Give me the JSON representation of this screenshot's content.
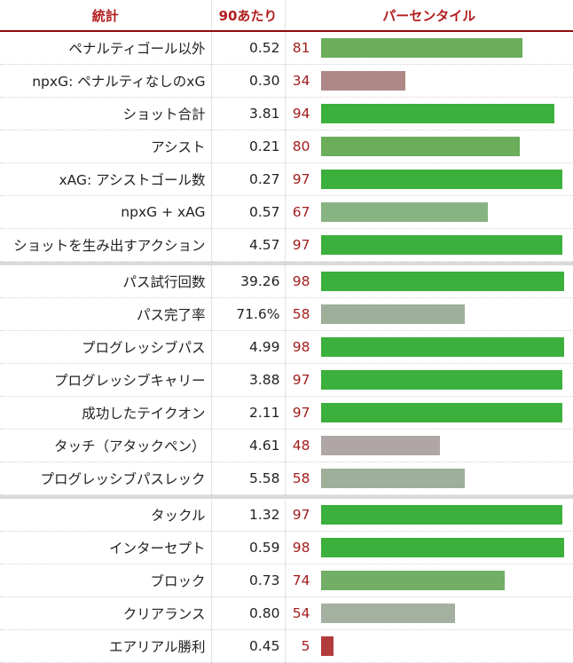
{
  "header": {
    "stat_label": "統計",
    "per90_label": "90あたり",
    "percentile_label": "パーセンタイル"
  },
  "groups": [
    {
      "rows": [
        {
          "stat": "ペナルティゴール以外",
          "per90": "0.52",
          "percentile": 81,
          "color": "#6aad5b"
        },
        {
          "stat": "npxG: ペナルティなしのxG",
          "per90": "0.30",
          "percentile": 34,
          "color": "#ae8886"
        },
        {
          "stat": "ショット合計",
          "per90": "3.81",
          "percentile": 94,
          "color": "#3cb03c"
        },
        {
          "stat": "アシスト",
          "per90": "0.21",
          "percentile": 80,
          "color": "#6aad5b"
        },
        {
          "stat": "xAG: アシストゴール数",
          "per90": "0.27",
          "percentile": 97,
          "color": "#3cb03c"
        },
        {
          "stat": "npxG + xAG",
          "per90": "0.57",
          "percentile": 67,
          "color": "#88b484"
        },
        {
          "stat": "ショットを生み出すアクション",
          "per90": "4.57",
          "percentile": 97,
          "color": "#3cb03c"
        }
      ]
    },
    {
      "rows": [
        {
          "stat": "パス試行回数",
          "per90": "39.26",
          "percentile": 98,
          "color": "#3cb03c"
        },
        {
          "stat": "パス完了率",
          "per90": "71.6%",
          "percentile": 58,
          "color": "#9eaf9a"
        },
        {
          "stat": "プログレッシブパス",
          "per90": "4.99",
          "percentile": 98,
          "color": "#3cb03c"
        },
        {
          "stat": "プログレッシブキャリー",
          "per90": "3.88",
          "percentile": 97,
          "color": "#3cb03c"
        },
        {
          "stat": "成功したテイクオン",
          "per90": "2.11",
          "percentile": 97,
          "color": "#3cb03c"
        },
        {
          "stat": "タッチ（アタックペン）",
          "per90": "4.61",
          "percentile": 48,
          "color": "#b0a6a6"
        },
        {
          "stat": "プログレッシブパスレック",
          "per90": "5.58",
          "percentile": 58,
          "color": "#9eaf9a"
        }
      ]
    },
    {
      "rows": [
        {
          "stat": "タックル",
          "per90": "1.32",
          "percentile": 97,
          "color": "#3cb03c"
        },
        {
          "stat": "インターセプト",
          "per90": "0.59",
          "percentile": 98,
          "color": "#3cb03c"
        },
        {
          "stat": "ブロック",
          "per90": "0.73",
          "percentile": 74,
          "color": "#72ae66"
        },
        {
          "stat": "クリアランス",
          "per90": "0.80",
          "percentile": 54,
          "color": "#a4b0a0"
        },
        {
          "stat": "エアリアル勝利",
          "per90": "0.45",
          "percentile": 5,
          "color": "#b23c3c"
        }
      ]
    }
  ]
}
